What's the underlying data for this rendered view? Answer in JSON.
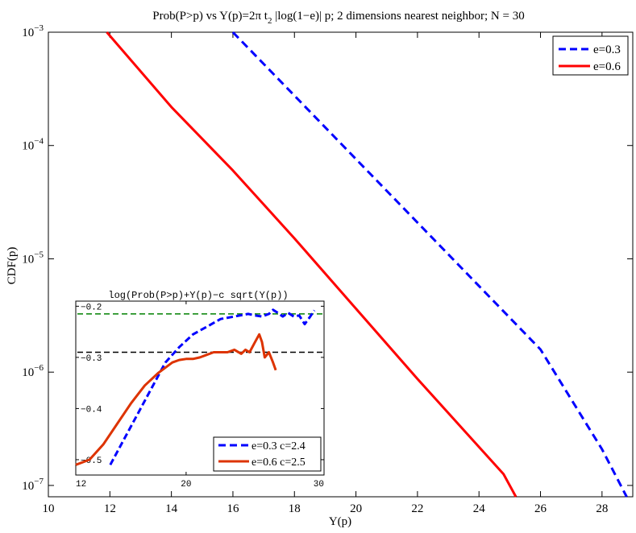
{
  "chart_data": [
    {
      "type": "line",
      "role": "main",
      "title_prefix": "Prob(P>p) vs Y(p)=2π t",
      "title_sub": "2",
      "title_suffix": " |log(1−e)| p;  2 dimensions nearest neighbor; N = 30",
      "xlabel": "Y(p)",
      "ylabel": "CDF(p)",
      "xlim": [
        10,
        29
      ],
      "ylim_log10": [
        -7.1,
        -3
      ],
      "y_scale": "log",
      "x_ticks": [
        10,
        12,
        14,
        16,
        18,
        20,
        22,
        24,
        26,
        28
      ],
      "y_ticks": [
        {
          "value": -7,
          "base": "10",
          "exp": "−7"
        },
        {
          "value": -6,
          "base": "10",
          "exp": "−6"
        },
        {
          "value": -5,
          "base": "10",
          "exp": "−5"
        },
        {
          "value": -4,
          "base": "10",
          "exp": "−4"
        },
        {
          "value": -3,
          "base": "10",
          "exp": "−3"
        }
      ],
      "legend_position": "top-right",
      "series": [
        {
          "name": "e=0.3",
          "color": "#0000ff",
          "style": "dashed",
          "x": [
            16.0,
            18.0,
            20.0,
            22.0,
            24.0,
            26.0,
            28.0,
            28.8
          ],
          "log10_y": [
            -3.0,
            -3.56,
            -4.12,
            -4.68,
            -5.24,
            -5.8,
            -6.68,
            -7.1
          ]
        },
        {
          "name": "e=0.6",
          "color": "#ff0000",
          "style": "solid",
          "x": [
            11.9,
            14.0,
            16.0,
            18.0,
            20.0,
            22.0,
            24.0,
            24.8,
            25.2
          ],
          "log10_y": [
            -3.0,
            -3.66,
            -4.22,
            -4.82,
            -5.44,
            -6.06,
            -6.66,
            -6.9,
            -7.1
          ]
        }
      ]
    },
    {
      "type": "line",
      "role": "inset",
      "title": "log(Prob(P>p)+Y(p)−c sqrt(Y(p))",
      "xlim": [
        12,
        30
      ],
      "ylim": [
        -0.53,
        -0.19
      ],
      "x_ticks": [
        12,
        20,
        30
      ],
      "y_ticks": [
        {
          "value": -0.5,
          "label": "−0.5"
        },
        {
          "value": -0.4,
          "label": "−0.4"
        },
        {
          "value": -0.3,
          "label": "−0.3"
        },
        {
          "value": -0.2,
          "label": "−0.2"
        }
      ],
      "reference_lines": [
        {
          "y": -0.215,
          "color": "#008000"
        },
        {
          "y": -0.29,
          "color": "#000000"
        }
      ],
      "legend_position": "bottom-right",
      "series": [
        {
          "name": "e=0.3 c=2.4",
          "color": "#0000ff",
          "style": "dashed",
          "x": [
            14.5,
            15.5,
            16.5,
            17.5,
            18.5,
            19.5,
            20.5,
            21.5,
            22.5,
            23.5,
            24.5,
            25.0,
            25.5,
            26.0,
            26.3,
            26.6,
            27.0,
            27.4,
            27.8,
            28.2,
            28.6,
            29.0,
            29.3
          ],
          "y": [
            -0.51,
            -0.46,
            -0.41,
            -0.36,
            -0.31,
            -0.28,
            -0.255,
            -0.24,
            -0.225,
            -0.22,
            -0.215,
            -0.218,
            -0.22,
            -0.215,
            -0.207,
            -0.212,
            -0.22,
            -0.213,
            -0.22,
            -0.218,
            -0.235,
            -0.22,
            -0.208
          ]
        },
        {
          "name": "e=0.6 c=2.5",
          "color": "#dd3300",
          "style": "solid",
          "x": [
            12.0,
            12.5,
            13.0,
            14.0,
            15.0,
            16.0,
            17.0,
            18.0,
            19.0,
            19.5,
            20.0,
            20.5,
            21.0,
            22.0,
            22.5,
            23.0,
            23.5,
            24.0,
            24.3,
            24.6,
            25.0,
            25.3,
            25.5,
            25.7,
            26.0,
            26.3,
            26.5
          ],
          "y": [
            -0.51,
            -0.505,
            -0.5,
            -0.47,
            -0.43,
            -0.39,
            -0.355,
            -0.33,
            -0.31,
            -0.305,
            -0.303,
            -0.303,
            -0.3,
            -0.29,
            -0.29,
            -0.29,
            -0.285,
            -0.293,
            -0.285,
            -0.29,
            -0.27,
            -0.255,
            -0.27,
            -0.3,
            -0.29,
            -0.31,
            -0.325
          ]
        }
      ]
    }
  ]
}
